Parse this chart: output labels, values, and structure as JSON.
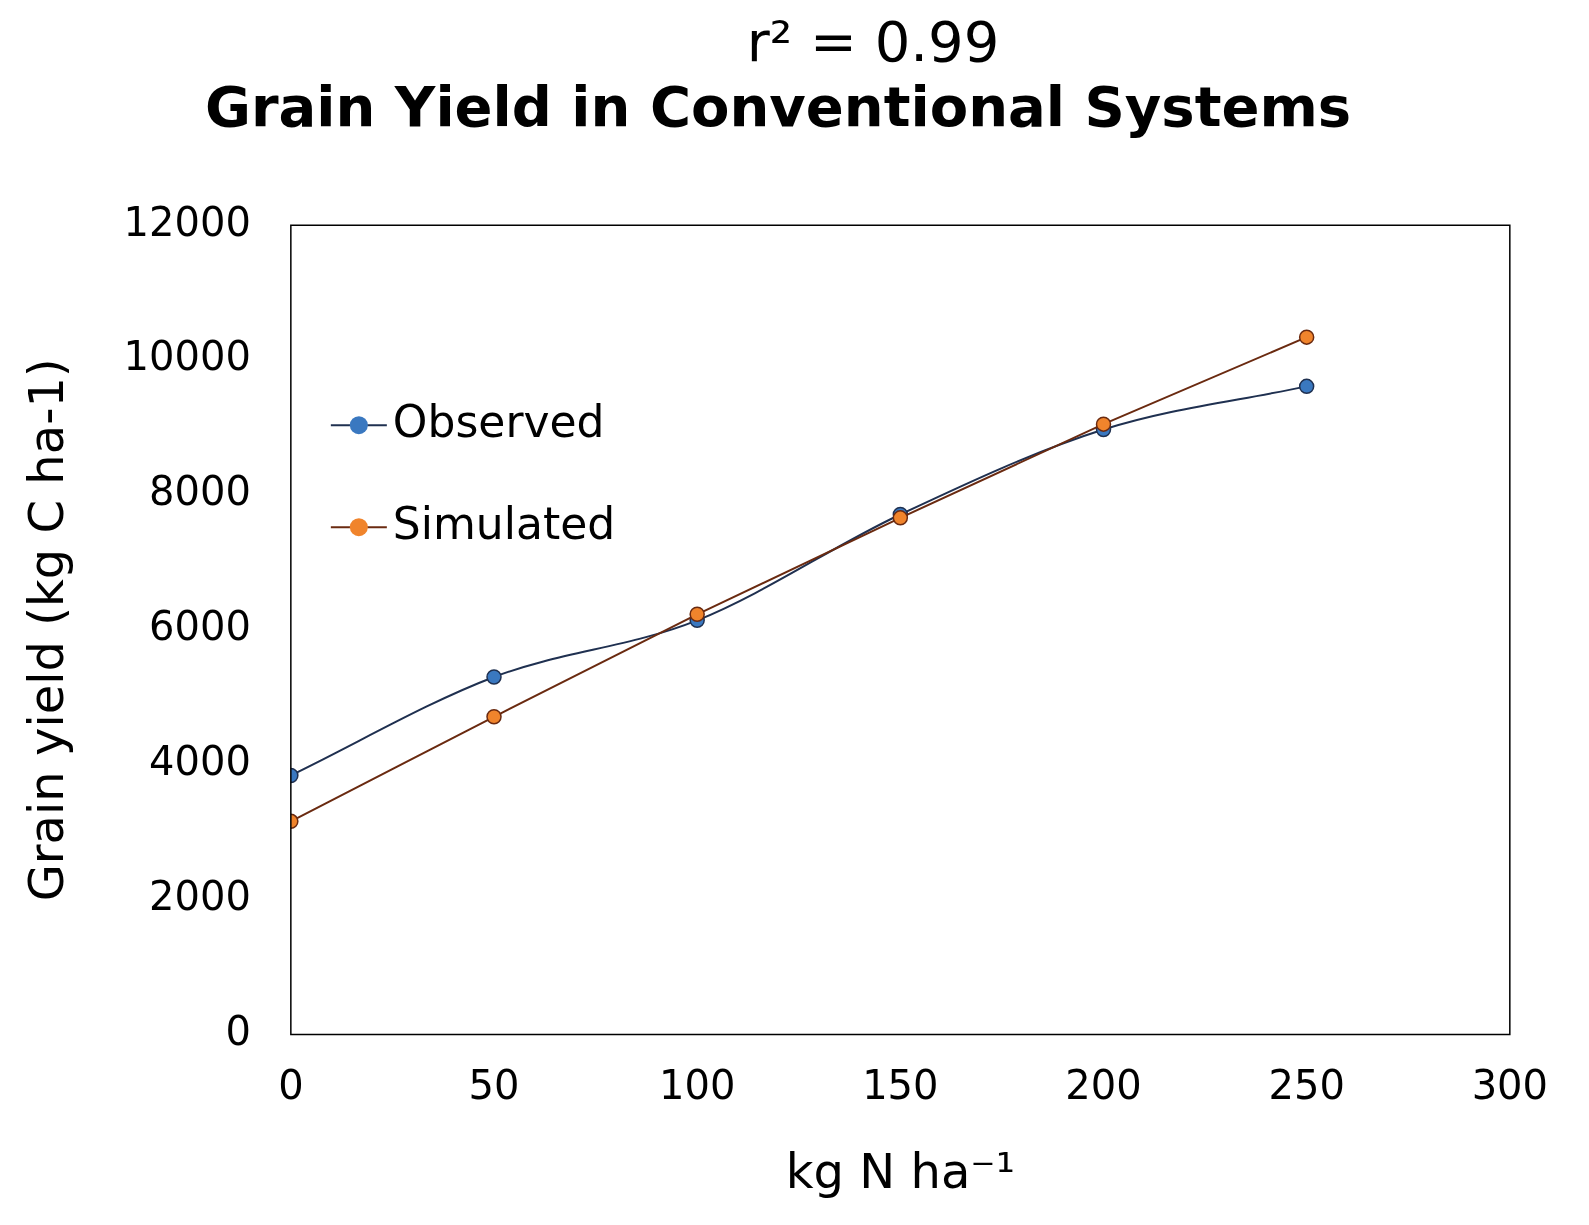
{
  "chart_data": {
    "type": "line",
    "title": "Grain Yield in Conventional Systems",
    "annotations": [
      "r² = 0.99"
    ],
    "xlabel": "kg N ha⁻¹",
    "ylabel": "Grain yield (kg C ha-1)",
    "x": [
      0,
      50,
      100,
      150,
      200,
      250
    ],
    "series": [
      {
        "name": "Observed",
        "color": "#3a78c0",
        "values": [
          3840,
          5300,
          6140,
          7710,
          8970,
          9610
        ]
      },
      {
        "name": "Simulated",
        "color": "#f0842c",
        "values": [
          3160,
          4710,
          6230,
          7660,
          9050,
          10340
        ]
      }
    ],
    "xlim": [
      0,
      300
    ],
    "xticks": [
      0,
      50,
      100,
      150,
      200,
      250,
      300
    ],
    "ylim": [
      0,
      12000
    ],
    "yticks": [
      0,
      2000,
      4000,
      6000,
      8000,
      10000,
      12000
    ],
    "grid": false,
    "legend": "top left",
    "marker": "circle",
    "line_style": "solid"
  }
}
